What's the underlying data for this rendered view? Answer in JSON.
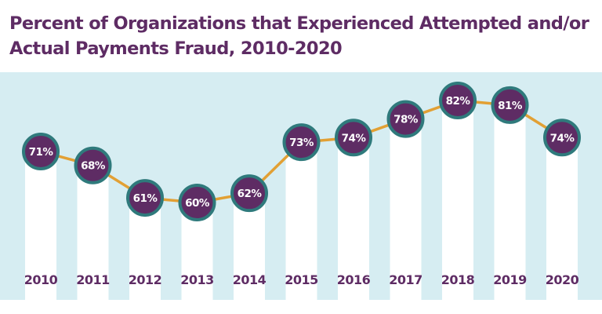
{
  "chart_data": {
    "type": "line",
    "title": "Percent of Organizations that Experienced Attempted and/or Actual Payments Fraud, 2010-2020",
    "categories": [
      "2010",
      "2011",
      "2012",
      "2013",
      "2014",
      "2015",
      "2016",
      "2017",
      "2018",
      "2019",
      "2020"
    ],
    "values": [
      71,
      68,
      61,
      60,
      62,
      73,
      74,
      78,
      82,
      81,
      74
    ],
    "value_labels": [
      "71%",
      "68%",
      "61%",
      "60%",
      "62%",
      "73%",
      "74%",
      "78%",
      "82%",
      "81%",
      "74%"
    ],
    "xlabel": "",
    "ylabel": "",
    "grid": false,
    "colors": {
      "title": "#5e2c64",
      "band": "#d6edf2",
      "bar": "#ffffff",
      "line": "#e2a034",
      "marker_fill": "#5e2c64",
      "marker_stroke": "#2f7a7c",
      "label": "#ffffff"
    }
  }
}
